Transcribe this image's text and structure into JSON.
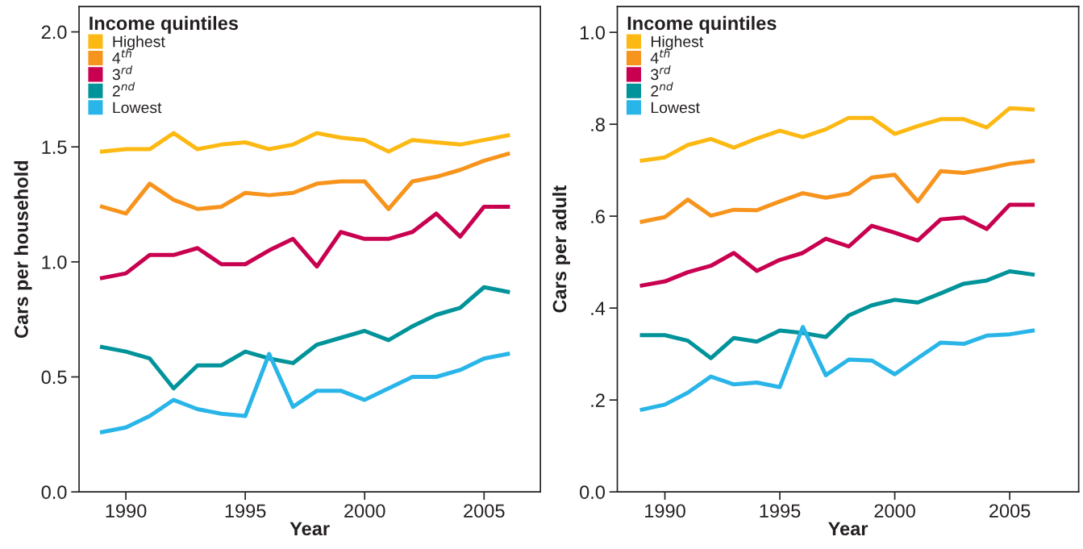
{
  "chart_data": [
    {
      "type": "line",
      "xlabel": "Year",
      "ylabel": "Cars per household",
      "legend_title": "Income quintiles",
      "legend": "top left",
      "grid": false,
      "marker": "none",
      "line_style": "solid",
      "x": [
        1989,
        1990,
        1991,
        1992,
        1993,
        1994,
        1995,
        1996,
        1997,
        1998,
        1999,
        2000,
        2001,
        2002,
        2003,
        2004,
        2005,
        2006
      ],
      "xlim": [
        1988.04,
        2007.36
      ],
      "xticks": [
        1990,
        1995,
        2000,
        2005
      ],
      "ylim": [
        0,
        2.11
      ],
      "yticks": [
        {
          "value": 0,
          "label": "0.0"
        },
        {
          "value": 0.5,
          "label": "0.5"
        },
        {
          "value": 1,
          "label": "1.0"
        },
        {
          "value": 1.5,
          "label": "1.5"
        },
        {
          "value": 2,
          "label": "2.0"
        }
      ],
      "series": [
        {
          "name": "Highest",
          "color": "#fdb913",
          "values": [
            1.48,
            1.49,
            1.49,
            1.56,
            1.49,
            1.51,
            1.52,
            1.49,
            1.51,
            1.56,
            1.54,
            1.53,
            1.48,
            1.53,
            1.52,
            1.51,
            1.53,
            1.55
          ]
        },
        {
          "name": "4$^{th}$",
          "color": "#f7941d",
          "values": [
            1.24,
            1.21,
            1.34,
            1.27,
            1.23,
            1.24,
            1.3,
            1.29,
            1.3,
            1.34,
            1.35,
            1.35,
            1.23,
            1.35,
            1.37,
            1.4,
            1.44,
            1.47
          ]
        },
        {
          "name": "3$^{rd}$",
          "color": "#c8004f",
          "values": [
            0.93,
            0.95,
            1.03,
            1.03,
            1.06,
            0.99,
            0.99,
            1.05,
            1.1,
            0.98,
            1.13,
            1.1,
            1.1,
            1.13,
            1.21,
            1.11,
            1.24,
            1.24
          ]
        },
        {
          "name": "2$^{nd}$",
          "color": "#00939a",
          "values": [
            0.63,
            0.61,
            0.58,
            0.45,
            0.55,
            0.55,
            0.61,
            0.58,
            0.56,
            0.64,
            0.67,
            0.7,
            0.66,
            0.72,
            0.77,
            0.8,
            0.89,
            0.87
          ]
        },
        {
          "name": "Lowest",
          "color": "#29b5e8",
          "values": [
            0.26,
            0.28,
            0.33,
            0.4,
            0.36,
            0.34,
            0.33,
            0.6,
            0.37,
            0.44,
            0.44,
            0.4,
            0.45,
            0.5,
            0.5,
            0.53,
            0.58,
            0.6
          ]
        }
      ]
    },
    {
      "type": "line",
      "xlabel": "Year",
      "ylabel": "Cars per adult",
      "legend_title": "Income quintiles",
      "legend": "top left",
      "grid": false,
      "marker": "none",
      "line_style": "solid",
      "x": [
        1989,
        1990,
        1991,
        1992,
        1993,
        1994,
        1995,
        1996,
        1997,
        1998,
        1999,
        2000,
        2001,
        2002,
        2003,
        2004,
        2005,
        2006
      ],
      "xlim": [
        1987.93,
        2008.0
      ],
      "xticks": [
        1990,
        1995,
        2000,
        2005
      ],
      "ylim": [
        0,
        1.056
      ],
      "yticks": [
        {
          "value": 0,
          "label": "0.0"
        },
        {
          "value": 0.2,
          "label": ".2"
        },
        {
          "value": 0.4,
          "label": ".4"
        },
        {
          "value": 0.6,
          "label": ".6"
        },
        {
          "value": 0.8,
          "label": ".8"
        },
        {
          "value": 1,
          "label": "1.0"
        }
      ],
      "series": [
        {
          "name": "Highest",
          "color": "#fdb913",
          "values": [
            0.721,
            0.728,
            0.755,
            0.768,
            0.749,
            0.769,
            0.786,
            0.772,
            0.789,
            0.814,
            0.814,
            0.779,
            0.796,
            0.811,
            0.811,
            0.793,
            0.835,
            0.832
          ]
        },
        {
          "name": "4$^{th}$",
          "color": "#f7941d",
          "values": [
            0.588,
            0.598,
            0.636,
            0.601,
            0.614,
            0.613,
            0.632,
            0.65,
            0.64,
            0.649,
            0.684,
            0.69,
            0.632,
            0.698,
            0.694,
            0.703,
            0.714,
            0.72
          ]
        },
        {
          "name": "3$^{rd}$",
          "color": "#c8004f",
          "values": [
            0.449,
            0.458,
            0.478,
            0.492,
            0.52,
            0.481,
            0.505,
            0.52,
            0.551,
            0.534,
            0.579,
            0.564,
            0.547,
            0.593,
            0.597,
            0.572,
            0.625,
            0.625
          ]
        },
        {
          "name": "2$^{nd}$",
          "color": "#00939a",
          "values": [
            0.341,
            0.341,
            0.329,
            0.291,
            0.335,
            0.327,
            0.351,
            0.346,
            0.337,
            0.384,
            0.406,
            0.418,
            0.412,
            0.432,
            0.453,
            0.46,
            0.48,
            0.473
          ]
        },
        {
          "name": "Lowest",
          "color": "#29b5e8",
          "values": [
            0.179,
            0.19,
            0.216,
            0.251,
            0.234,
            0.238,
            0.228,
            0.359,
            0.254,
            0.288,
            0.286,
            0.256,
            0.291,
            0.325,
            0.322,
            0.34,
            0.343,
            0.351
          ]
        }
      ]
    }
  ]
}
